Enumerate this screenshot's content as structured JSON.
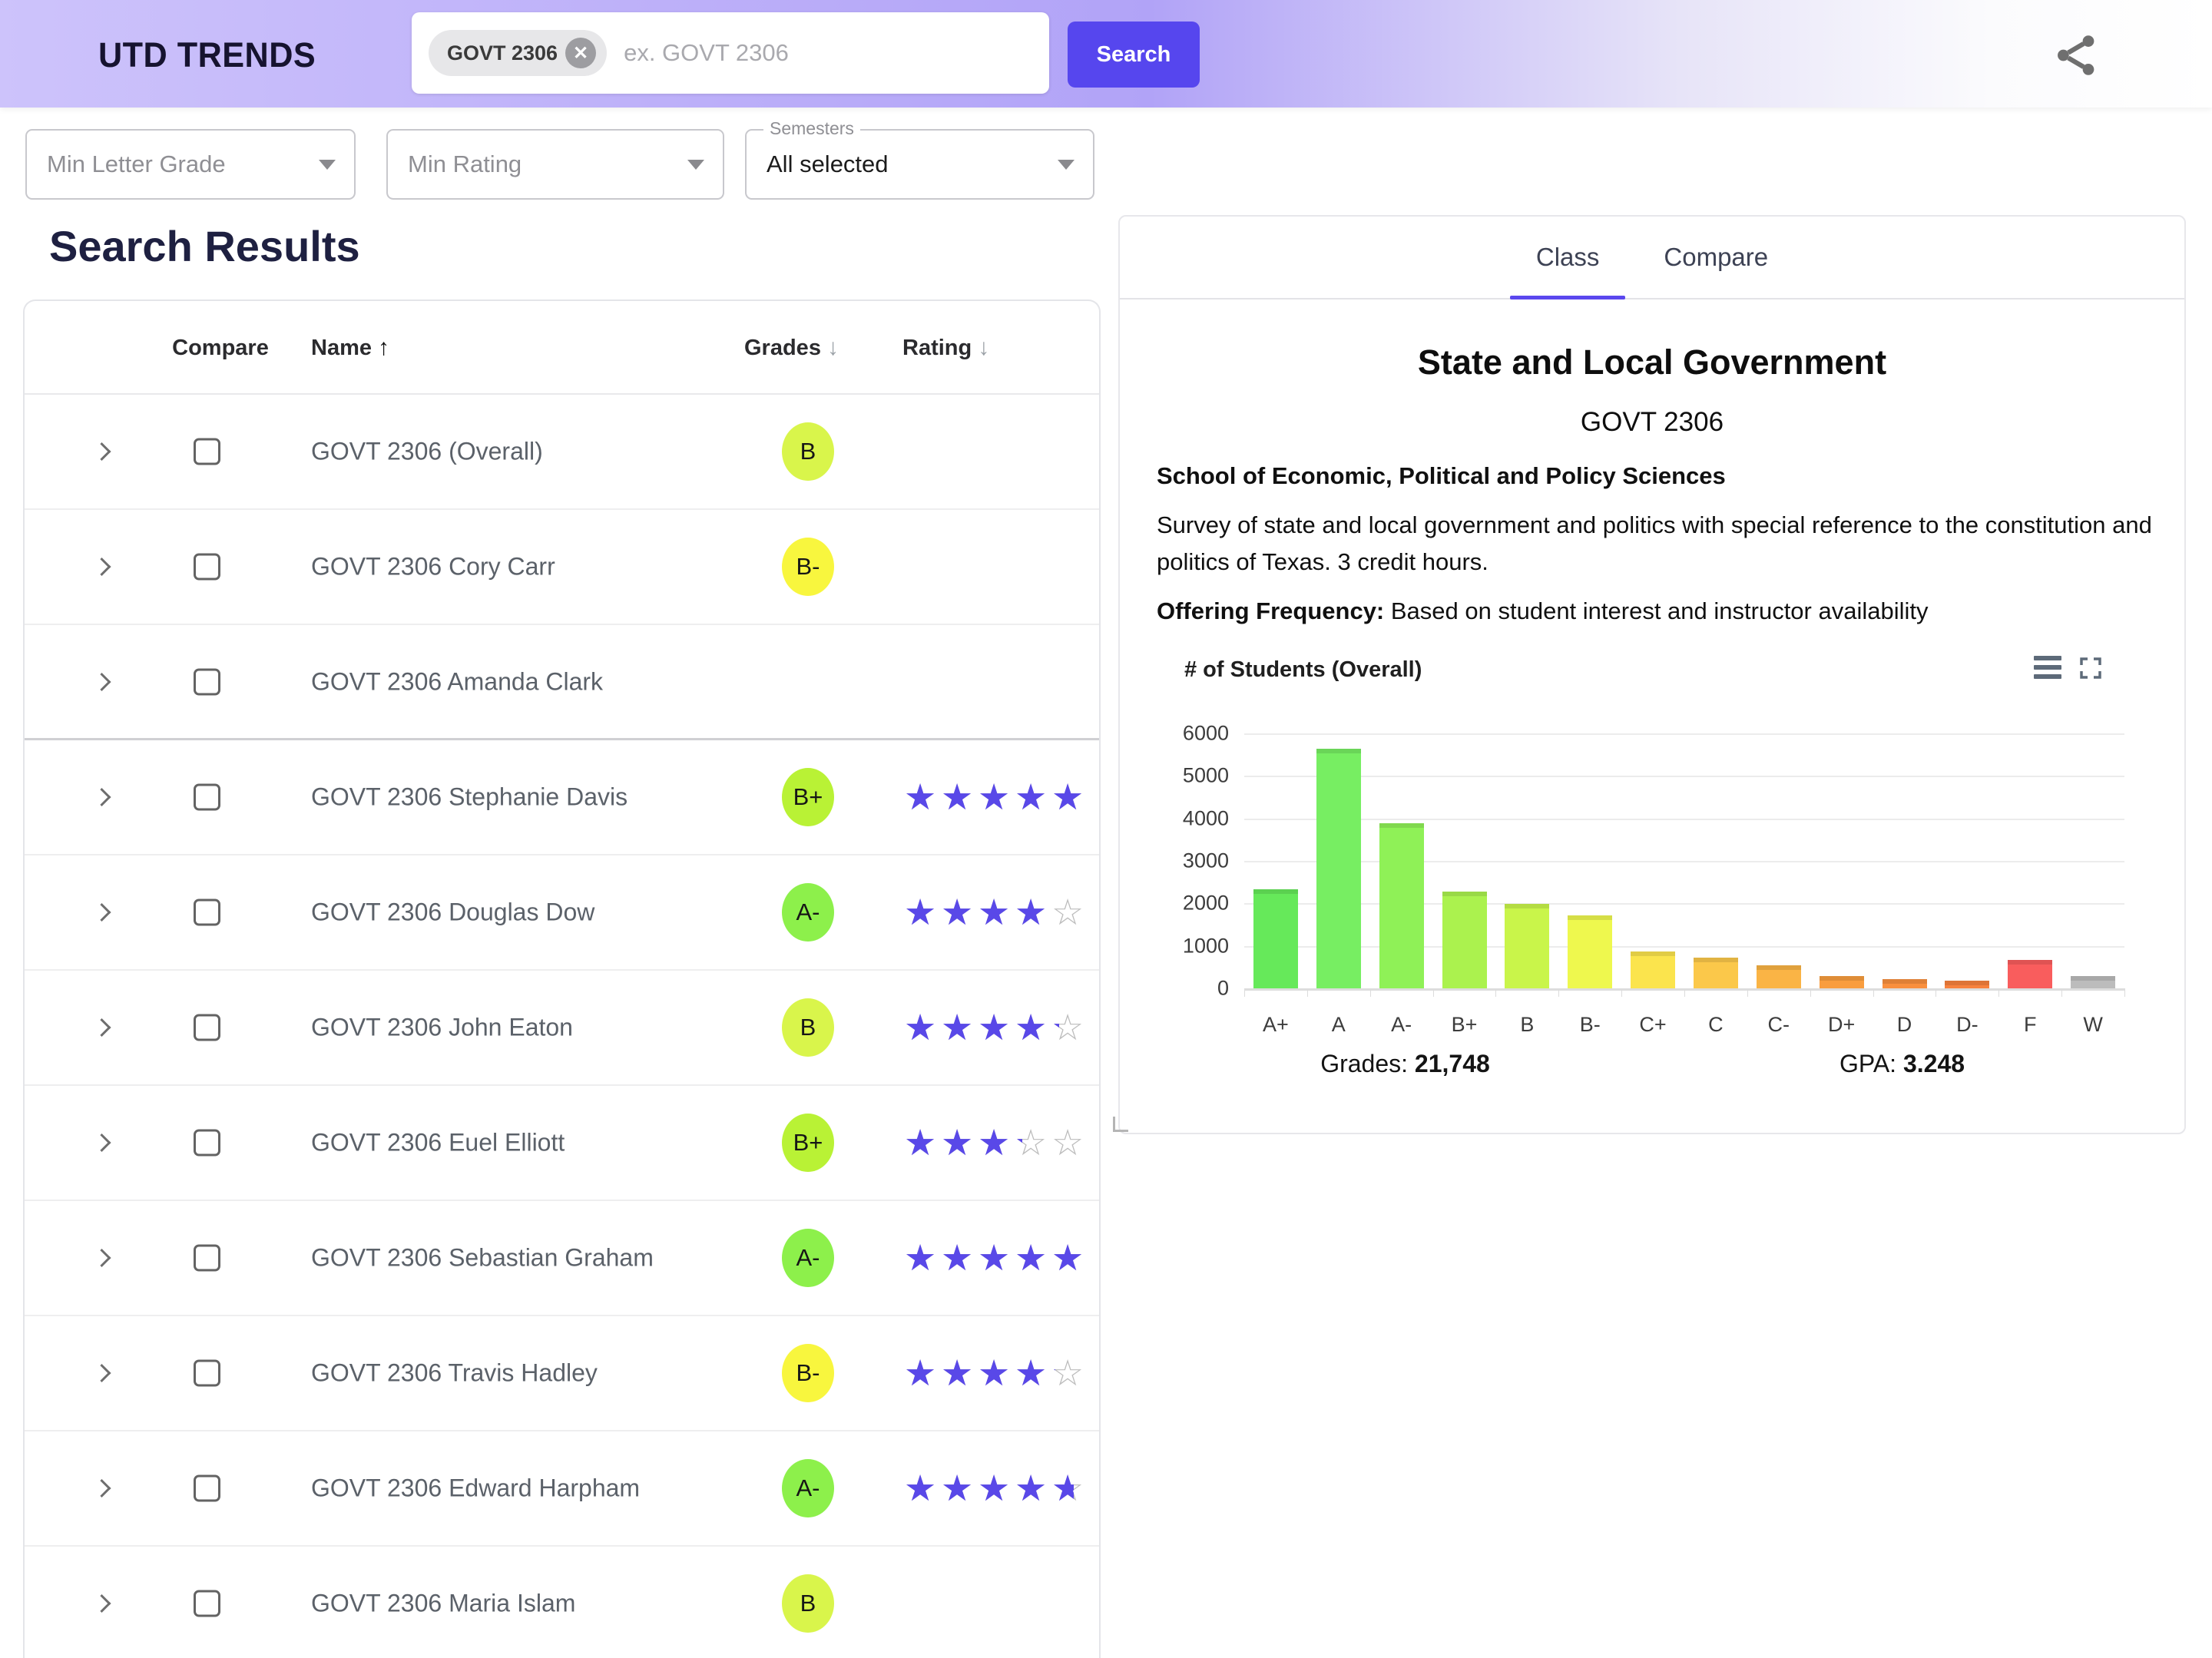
{
  "header": {
    "logo": "UTD TRENDS",
    "search_chip": "GOVT 2306",
    "search_placeholder": "ex. GOVT 2306",
    "search_button": "Search",
    "accent_color": "#5646ee"
  },
  "filters": [
    {
      "label": "Min Letter Grade",
      "value": ""
    },
    {
      "label": "Min Rating",
      "value": ""
    },
    {
      "label": "Semesters",
      "value": "All selected"
    }
  ],
  "results": {
    "title": "Search Results",
    "columns": {
      "compare": "Compare",
      "name": "Name",
      "grades": "Grades",
      "rating": "Rating",
      "name_sort": "↑",
      "grades_sort": "↓",
      "rating_sort": "↓"
    },
    "star_color": "#5948e8",
    "rows": [
      {
        "name": "GOVT 2306 (Overall)",
        "grade": "B",
        "grade_color": "#d9f54b",
        "rating": null,
        "thick": false
      },
      {
        "name": "GOVT 2306 Cory Carr",
        "grade": "B-",
        "grade_color": "#f8f63e",
        "rating": null,
        "thick": false
      },
      {
        "name": "GOVT 2306 Amanda Clark",
        "grade": null,
        "grade_color": null,
        "rating": null,
        "thick": true
      },
      {
        "name": "GOVT 2306 Stephanie Davis",
        "grade": "B+",
        "grade_color": "#b9f235",
        "rating": 4.9,
        "thick": false
      },
      {
        "name": "GOVT 2306 Douglas Dow",
        "grade": "A-",
        "grade_color": "#8df04b",
        "rating": 4.0,
        "thick": false
      },
      {
        "name": "GOVT 2306 John Eaton",
        "grade": "B",
        "grade_color": "#d9f54b",
        "rating": 4.2,
        "thick": false
      },
      {
        "name": "GOVT 2306 Euel Elliott",
        "grade": "B+",
        "grade_color": "#b9f235",
        "rating": 3.2,
        "thick": false
      },
      {
        "name": "GOVT 2306 Sebastian Graham",
        "grade": "A-",
        "grade_color": "#8df04b",
        "rating": 5.0,
        "thick": false
      },
      {
        "name": "GOVT 2306 Travis Hadley",
        "grade": "B-",
        "grade_color": "#f8f63e",
        "rating": 4.1,
        "thick": false
      },
      {
        "name": "GOVT 2306 Edward Harpham",
        "grade": "A-",
        "grade_color": "#8df04b",
        "rating": 4.6,
        "thick": false
      },
      {
        "name": "GOVT 2306 Maria Islam",
        "grade": "B",
        "grade_color": "#d9f54b",
        "rating": null,
        "thick": false
      }
    ]
  },
  "panel": {
    "tabs": {
      "class": "Class",
      "compare": "Compare",
      "active": "Class"
    },
    "title": "State and Local Government",
    "code": "GOVT 2306",
    "school": "School of Economic, Political and Policy Sciences",
    "description": "Survey of state and local government and politics with special reference to the constitution and politics of Texas. 3 credit hours.",
    "offering_label": "Offering Frequency:",
    "offering_value": " Based on student interest and instructor availability",
    "stats": {
      "grades_label": "Grades:",
      "grades_value": "21,748",
      "gpa_label": "GPA:",
      "gpa_value": "3.248"
    }
  },
  "chart_data": {
    "type": "bar",
    "title": "# of Students (Overall)",
    "categories": [
      "A+",
      "A",
      "A-",
      "B+",
      "B",
      "B-",
      "C+",
      "C",
      "C-",
      "D+",
      "D",
      "D-",
      "F",
      "W"
    ],
    "values": [
      2330,
      5630,
      3890,
      2270,
      1980,
      1710,
      870,
      730,
      550,
      290,
      220,
      190,
      660,
      290
    ],
    "bar_colors": [
      "#66e95a",
      "#77ee62",
      "#8ff157",
      "#abf24e",
      "#c9f54a",
      "#eef84e",
      "#fbe44d",
      "#fbc84a",
      "#fab445",
      "#f99d3e",
      "#f98f3d",
      "#f8823e",
      "#f95d5d",
      "#bcbcbc"
    ],
    "xlabel": "",
    "ylabel": "# of Students",
    "ylim": [
      0,
      6000
    ],
    "y_ticks": [
      0,
      1000,
      2000,
      3000,
      4000,
      5000,
      6000
    ],
    "grid": true,
    "legend": false
  }
}
